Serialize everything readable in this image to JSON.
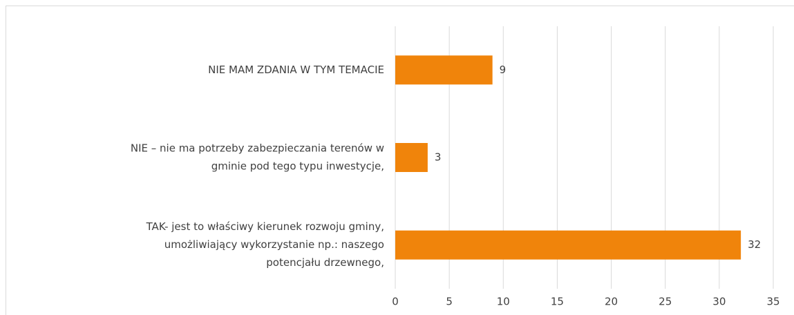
{
  "chart_data": {
    "type": "bar",
    "orientation": "horizontal",
    "categories": [
      [
        "NIE MAM ZDANIA W TYM TEMACIE"
      ],
      [
        "NIE – nie ma potrzeby zabezpieczania terenów w",
        "gminie pod tego typu inwestycje,"
      ],
      [
        "TAK- jest to właściwy kierunek rozwoju gminy,",
        "umożliwiający wykorzystanie np.: naszego",
        "potencjału drzewnego,"
      ]
    ],
    "values": [
      9,
      3,
      32
    ],
    "color": "#f0840b",
    "xlim": [
      0,
      35
    ],
    "xticks": [
      0,
      5,
      10,
      15,
      20,
      25,
      30,
      35
    ],
    "grid": true
  }
}
